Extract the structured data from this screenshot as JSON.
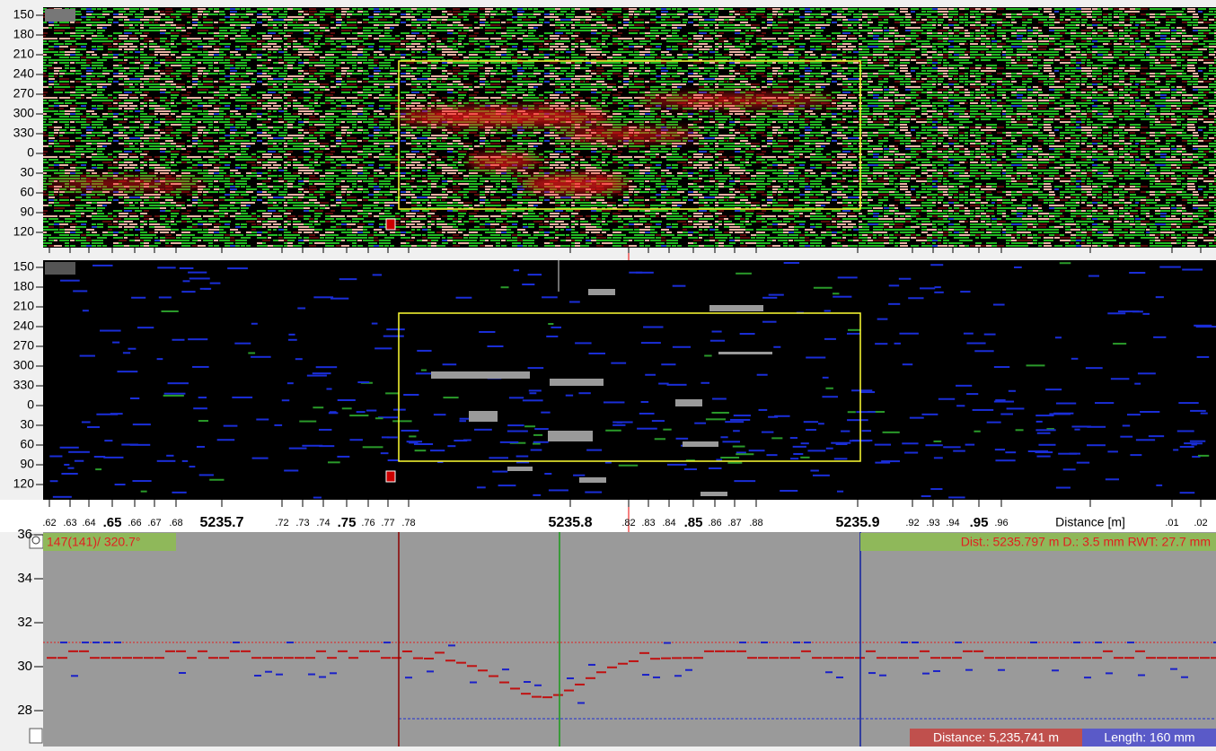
{
  "scan_panels": [
    {
      "angle_labels": [
        "150",
        "180",
        "210",
        "240",
        "270",
        "300",
        "330",
        "0",
        "30",
        "60",
        "90",
        "120"
      ]
    },
    {
      "angle_labels": [
        "150",
        "180",
        "210",
        "240",
        "270",
        "300",
        "330",
        "0",
        "30",
        "60",
        "90",
        "120"
      ]
    }
  ],
  "distance_axis": {
    "labels": [
      ".62",
      ".63",
      ".64",
      ".65",
      ".66",
      ".67",
      ".68",
      "5235.7",
      ".72",
      ".73",
      ".74",
      ".75",
      ".76",
      ".77",
      ".78",
      "5235.8",
      ".82",
      ".83",
      ".84",
      ".85",
      ".86",
      ".87",
      ".88",
      "5235.9",
      ".92",
      ".93",
      ".94",
      ".95",
      ".96",
      "Distance [m]",
      ".01",
      ".02"
    ]
  },
  "profile_plot": {
    "yticks": [
      36,
      34,
      32,
      30,
      28
    ],
    "cursor_info": "147(141)/ 320.7°",
    "measurement": "Dist.: 5235.797 m  D.: 3.5 mm RWT: 27.7 mm",
    "distance": "Distance: 5,235,741 m",
    "length": "Length: 160 mm"
  }
}
